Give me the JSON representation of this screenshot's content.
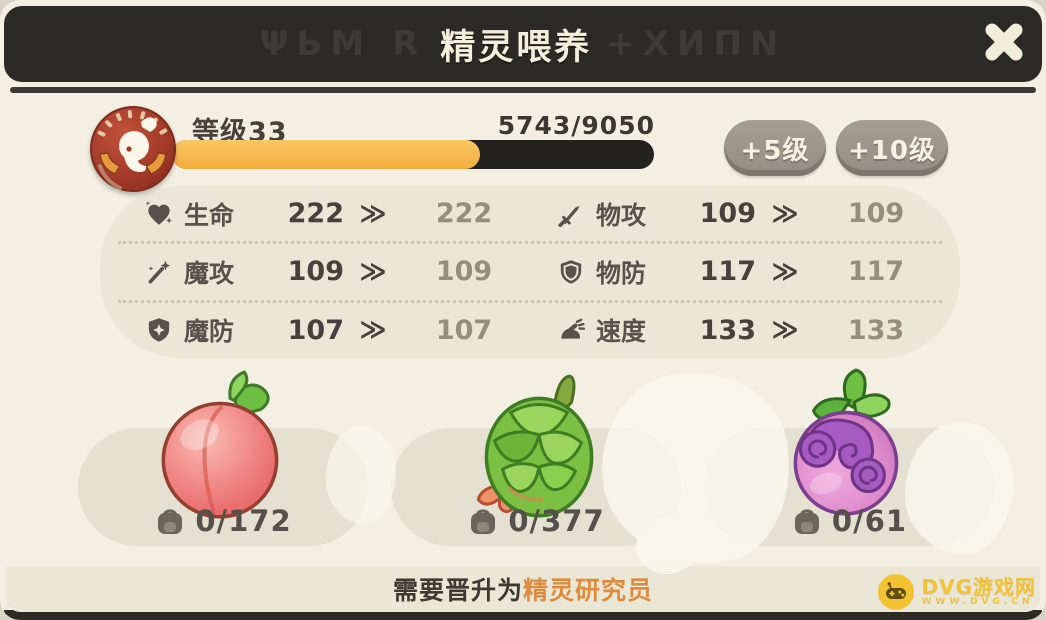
{
  "header": {
    "title": "精灵喂养",
    "runes_left": "ΨЬM R",
    "runes_right": "+XИПN"
  },
  "level": {
    "label": "等级33",
    "exp": "5743/9050",
    "progress_percent": 64,
    "plus5_label": "+5级",
    "plus10_label": "+10级"
  },
  "stats": {
    "arrow": "≫",
    "rows": [
      {
        "icon": "heart-icon",
        "label": "生命",
        "current": "222",
        "next": "222"
      },
      {
        "icon": "wand-icon",
        "label": "魔攻",
        "current": "109",
        "next": "109"
      },
      {
        "icon": "shield-sparkle-icon",
        "label": "魔防",
        "current": "107",
        "next": "107"
      },
      {
        "icon": "sword-icon",
        "label": "物攻",
        "current": "109",
        "next": "109"
      },
      {
        "icon": "shield-icon",
        "label": "物防",
        "current": "117",
        "next": "117"
      },
      {
        "icon": "speed-icon",
        "label": "速度",
        "current": "133",
        "next": "133"
      }
    ]
  },
  "fruits": [
    {
      "name": "peach",
      "count": "0/172"
    },
    {
      "name": "green-cone-fruit",
      "count": "0/377"
    },
    {
      "name": "purple-swirl-fruit",
      "count": "0/61"
    }
  ],
  "footer": {
    "prefix": "需要晋升为",
    "highlight": "精灵研究员"
  },
  "watermark": {
    "name": "DVG游戏网",
    "subtitle": "WWW.DVG.CN"
  },
  "colors": {
    "header_bg": "#2b2a25",
    "progress_fill": "#f6bb4d",
    "highlight_orange": "#dd8b3e",
    "watermark_yellow": "#f2c233"
  }
}
